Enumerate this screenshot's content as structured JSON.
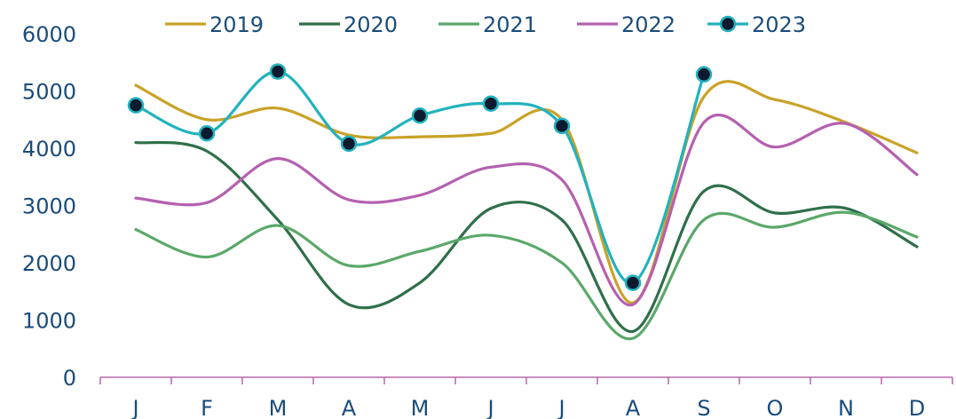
{
  "chart_data": {
    "type": "line",
    "smooth": true,
    "categories": [
      "J",
      "F",
      "M",
      "A",
      "M",
      "J",
      "J",
      "A",
      "S",
      "O",
      "N",
      "D"
    ],
    "ylim": [
      0,
      6000
    ],
    "yticks": [
      0,
      1000,
      2000,
      3000,
      4000,
      5000,
      6000
    ],
    "grid": false,
    "legend_position": "top",
    "series": [
      {
        "name": "2019",
        "color": "#c9a227",
        "markers": false,
        "values": [
          5100,
          4500,
          4700,
          4230,
          4200,
          4260,
          4500,
          1300,
          4900,
          4850,
          4450,
          3920
        ]
      },
      {
        "name": "2020",
        "color": "#2f6f4a",
        "markers": false,
        "values": [
          4100,
          3950,
          2750,
          1270,
          1650,
          2950,
          2750,
          800,
          3250,
          2870,
          2950,
          2280
        ]
      },
      {
        "name": "2021",
        "color": "#5aa86a",
        "markers": false,
        "values": [
          2580,
          2100,
          2650,
          1950,
          2200,
          2480,
          2000,
          680,
          2750,
          2620,
          2880,
          2450
        ]
      },
      {
        "name": "2022",
        "color": "#b560b0",
        "markers": false,
        "values": [
          3130,
          3050,
          3820,
          3100,
          3180,
          3670,
          3450,
          1270,
          4450,
          4020,
          4430,
          3540
        ]
      },
      {
        "name": "2023",
        "color": "#22b2be",
        "markers": true,
        "values": [
          4750,
          4260,
          5340,
          4080,
          4570,
          4780,
          4390,
          1650,
          5290,
          null,
          null,
          null
        ]
      }
    ]
  }
}
